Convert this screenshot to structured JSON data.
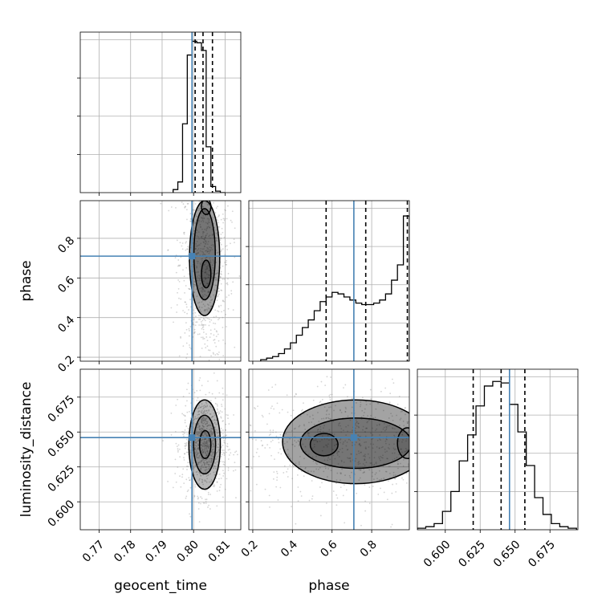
{
  "chart_data": {
    "type": "corner",
    "parameters": [
      "geocent_time",
      "phase",
      "luminosity_distance"
    ],
    "truths": {
      "geocent_time": 0.7995,
      "phase": 0.71,
      "luminosity_distance": 0.646
    },
    "colors": {
      "truth": "#4682b4",
      "hist": "#000000",
      "grid": "#b0b0b0"
    },
    "grid": true,
    "panels": [
      {
        "id": "hist-geocent_time",
        "type": "histogram",
        "x": "geocent_time",
        "xlim": [
          0.764,
          0.815
        ],
        "xticks": [
          0.77,
          0.78,
          0.79,
          0.8,
          0.81
        ],
        "tick_labels_shown": false,
        "bins": [
          0.7935,
          0.795,
          0.7965,
          0.798,
          0.7995,
          0.801,
          0.8025,
          0.804,
          0.8055,
          0.807,
          0.8085,
          0.81
        ],
        "counts": [
          0.02,
          0.07,
          0.45,
          0.9,
          0.99,
          0.98,
          0.93,
          0.3,
          0.04,
          0.01,
          0.0
        ],
        "quantiles": [
          0.8005,
          0.803,
          0.806
        ]
      },
      {
        "id": "hist-phase",
        "type": "histogram",
        "x": "phase",
        "xlim": [
          0.18,
          0.99
        ],
        "xticks": [
          0.2,
          0.4,
          0.6,
          0.8
        ],
        "tick_labels_shown": false,
        "bins": [
          0.24,
          0.27,
          0.3,
          0.33,
          0.36,
          0.39,
          0.42,
          0.45,
          0.48,
          0.51,
          0.54,
          0.57,
          0.6,
          0.63,
          0.66,
          0.69,
          0.72,
          0.75,
          0.78,
          0.81,
          0.84,
          0.87,
          0.9,
          0.93,
          0.96,
          0.99
        ],
        "counts": [
          0.01,
          0.02,
          0.03,
          0.05,
          0.08,
          0.12,
          0.17,
          0.22,
          0.27,
          0.33,
          0.39,
          0.42,
          0.45,
          0.44,
          0.42,
          0.4,
          0.38,
          0.37,
          0.37,
          0.38,
          0.4,
          0.44,
          0.53,
          0.63,
          0.95
        ],
        "quantiles": [
          0.57,
          0.77,
          0.98
        ]
      },
      {
        "id": "hist-luminosity_distance",
        "type": "histogram",
        "x": "luminosity_distance",
        "xlim": [
          0.58,
          0.695
        ],
        "xticks": [
          0.6,
          0.625,
          0.65,
          0.675
        ],
        "tick_labels": [
          "0.600",
          "0.625",
          "0.650",
          "0.675"
        ],
        "bins": [
          0.58,
          0.586,
          0.592,
          0.598,
          0.604,
          0.61,
          0.616,
          0.622,
          0.628,
          0.634,
          0.64,
          0.646,
          0.652,
          0.658,
          0.664,
          0.67,
          0.676,
          0.682,
          0.688,
          0.694
        ],
        "counts": [
          0.01,
          0.02,
          0.04,
          0.12,
          0.25,
          0.45,
          0.62,
          0.81,
          0.94,
          0.97,
          0.96,
          0.82,
          0.64,
          0.42,
          0.21,
          0.1,
          0.04,
          0.02,
          0.01
        ],
        "quantiles": [
          0.62,
          0.64,
          0.657
        ]
      },
      {
        "id": "2d-geocent_time-phase",
        "type": "2d",
        "x": "geocent_time",
        "y": "phase",
        "xlim": [
          0.764,
          0.815
        ],
        "ylim": [
          0.18,
          0.99
        ],
        "xticks": [
          0.77,
          0.78,
          0.79,
          0.8,
          0.81
        ],
        "yticks": [
          0.2,
          0.4,
          0.6,
          0.8
        ],
        "ytick_labels": [
          "0.2",
          "0.4",
          "0.6",
          "0.8"
        ],
        "ylabel": "phase",
        "center": [
          0.8035,
          0.68
        ],
        "spread": [
          0.0025,
          0.16
        ],
        "contours": [
          {
            "cx": 0.8035,
            "cy": 0.7,
            "rx": 0.0048,
            "ry": 0.29
          },
          {
            "cx": 0.8035,
            "cy": 0.72,
            "rx": 0.0034,
            "ry": 0.23
          },
          {
            "cx": 0.804,
            "cy": 0.62,
            "rx": 0.0015,
            "ry": 0.07
          },
          {
            "cx": 0.804,
            "cy": 0.96,
            "rx": 0.0015,
            "ry": 0.04
          }
        ]
      },
      {
        "id": "2d-geocent_time-luminosity_distance",
        "type": "2d",
        "x": "geocent_time",
        "y": "luminosity_distance",
        "xlim": [
          0.764,
          0.815
        ],
        "ylim": [
          0.58,
          0.695
        ],
        "xticks": [
          0.77,
          0.78,
          0.79,
          0.8,
          0.81
        ],
        "xtick_labels": [
          "0.77",
          "0.78",
          "0.79",
          "0.80",
          "0.81"
        ],
        "yticks": [
          0.6,
          0.625,
          0.65,
          0.675
        ],
        "ytick_labels": [
          "0.600",
          "0.625",
          "0.650",
          "0.675"
        ],
        "xlabel": "geocent_time",
        "ylabel": "luminosity_distance",
        "center": [
          0.8035,
          0.641
        ],
        "spread": [
          0.0022,
          0.011
        ],
        "contours": [
          {
            "cx": 0.8035,
            "cy": 0.641,
            "rx": 0.005,
            "ry": 0.032
          },
          {
            "cx": 0.8035,
            "cy": 0.641,
            "rx": 0.0035,
            "ry": 0.021
          },
          {
            "cx": 0.8037,
            "cy": 0.641,
            "rx": 0.0018,
            "ry": 0.01
          }
        ]
      },
      {
        "id": "2d-phase-luminosity_distance",
        "type": "2d",
        "x": "phase",
        "y": "luminosity_distance",
        "xlim": [
          0.18,
          0.99
        ],
        "ylim": [
          0.58,
          0.695
        ],
        "xticks": [
          0.2,
          0.4,
          0.6,
          0.8
        ],
        "xtick_labels": [
          "0.2",
          "0.4",
          "0.6",
          "0.8"
        ],
        "yticks": [
          0.6,
          0.625,
          0.65,
          0.675
        ],
        "xlabel": "phase",
        "center": [
          0.72,
          0.642
        ],
        "spread": [
          0.18,
          0.012
        ],
        "contours": [
          {
            "cx": 0.72,
            "cy": 0.643,
            "rx": 0.37,
            "ry": 0.03
          },
          {
            "cx": 0.72,
            "cy": 0.642,
            "rx": 0.28,
            "ry": 0.018
          },
          {
            "cx": 0.56,
            "cy": 0.641,
            "rx": 0.07,
            "ry": 0.008
          },
          {
            "cx": 0.98,
            "cy": 0.642,
            "rx": 0.05,
            "ry": 0.011
          }
        ]
      }
    ]
  }
}
